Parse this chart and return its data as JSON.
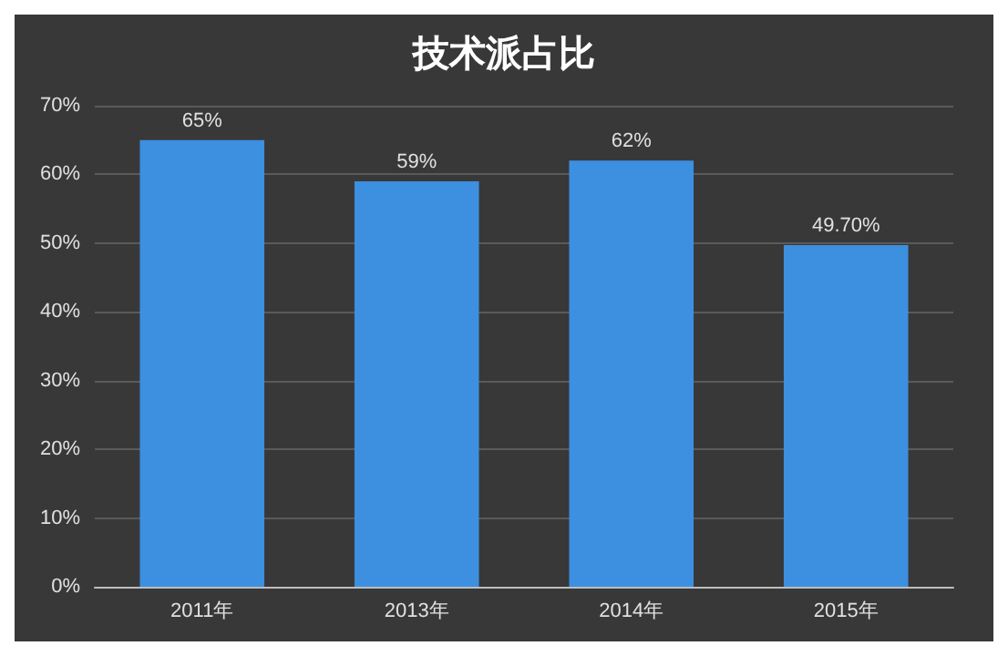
{
  "chart_data": {
    "type": "bar",
    "title": "技术派占比",
    "categories": [
      "2011年",
      "2013年",
      "2014年",
      "2015年"
    ],
    "values": [
      65,
      59,
      62,
      49.7
    ],
    "value_labels": [
      "65%",
      "59%",
      "62%",
      "49.70%"
    ],
    "color": "#3d8fe0",
    "ylim": [
      0,
      70
    ],
    "yticks": [
      {
        "value": 0,
        "label": "0%"
      },
      {
        "value": 10,
        "label": "10%"
      },
      {
        "value": 20,
        "label": "20%"
      },
      {
        "value": 30,
        "label": "30%"
      },
      {
        "value": 40,
        "label": "40%"
      },
      {
        "value": 50,
        "label": "50%"
      },
      {
        "value": 60,
        "label": "60%"
      },
      {
        "value": 70,
        "label": "70%"
      }
    ],
    "grid": "y"
  }
}
